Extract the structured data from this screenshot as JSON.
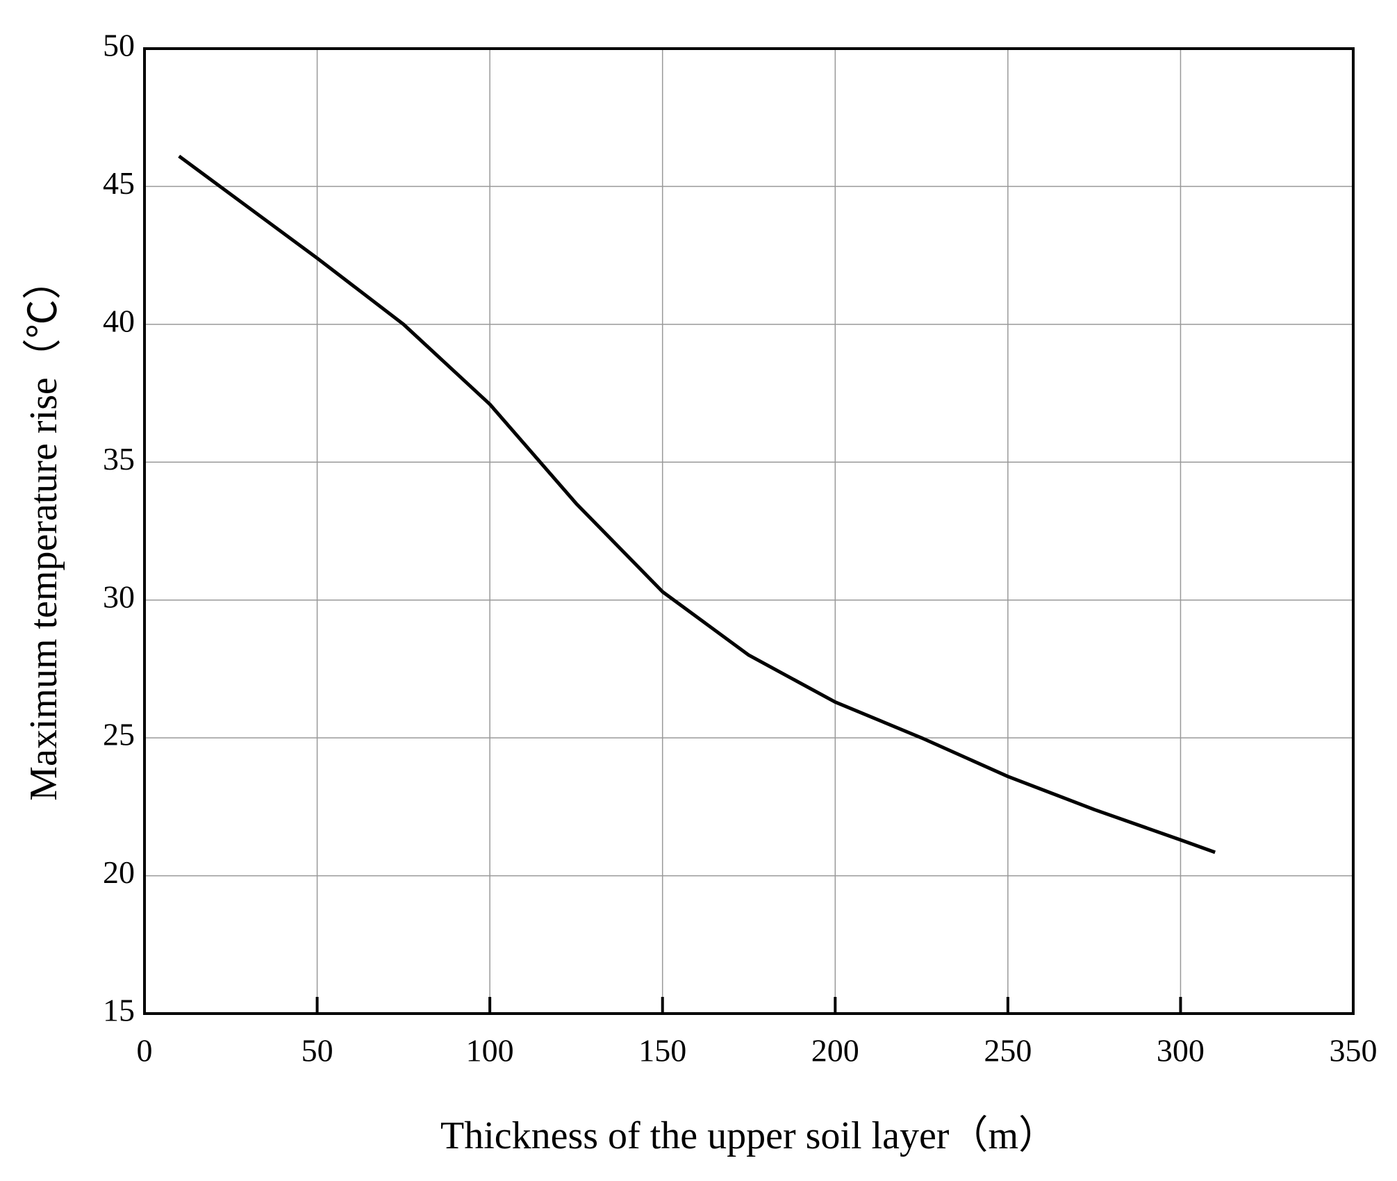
{
  "chart_data": {
    "type": "line",
    "x_label": "Thickness of the upper soil layer（m）",
    "y_label": "Maximum temperature rise（℃）",
    "x": [
      10,
      50,
      75,
      100,
      125,
      150,
      175,
      200,
      225,
      250,
      275,
      300,
      310
    ],
    "series": [
      {
        "name": "Maximum temperature rise",
        "color": "#000000",
        "values": [
          46.1,
          42.4,
          40.0,
          37.1,
          33.5,
          30.3,
          28.0,
          26.3,
          25.0,
          23.6,
          22.4,
          21.3,
          20.85
        ]
      }
    ],
    "xlim": [
      0,
      350
    ],
    "xticks": [
      0,
      50,
      100,
      150,
      200,
      250,
      300,
      350
    ],
    "ylim": [
      15,
      50
    ],
    "yticks": [
      15,
      20,
      25,
      30,
      35,
      40,
      45,
      50
    ],
    "grid": true
  }
}
